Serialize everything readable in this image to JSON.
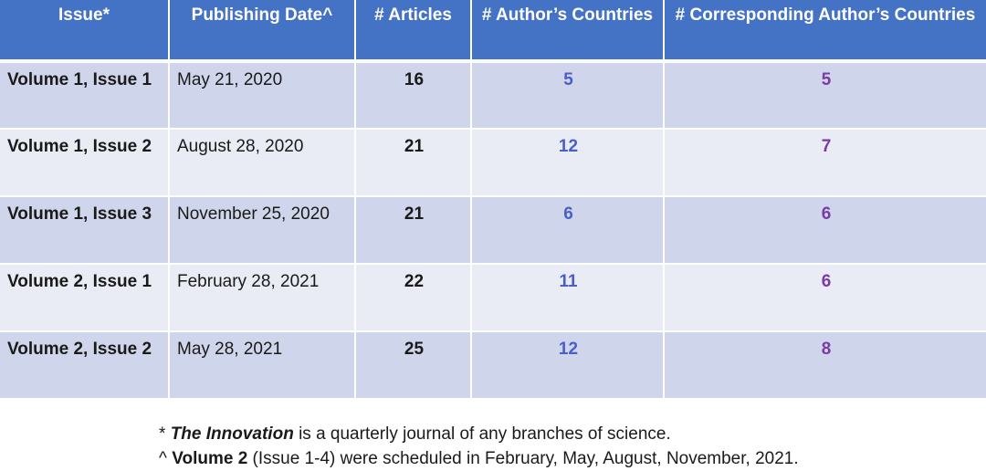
{
  "table": {
    "headers": [
      "Issue*",
      "Publishing Date^",
      "# Articles",
      "# Author’s Countries",
      "# Corresponding Author’s Countries"
    ],
    "rows": [
      {
        "issue": "Volume 1, Issue 1",
        "date": "May 21, 2020",
        "articles": "16",
        "authors": "5",
        "corr": "5"
      },
      {
        "issue": "Volume 1, Issue 2",
        "date": "August 28, 2020",
        "articles": "21",
        "authors": "12",
        "corr": "7"
      },
      {
        "issue": "Volume 1, Issue 3",
        "date": "November 25, 2020",
        "articles": "21",
        "authors": "6",
        "corr": "6"
      },
      {
        "issue": "Volume 2, Issue 1",
        "date": "February 28, 2021",
        "articles": "22",
        "authors": "11",
        "corr": "6"
      },
      {
        "issue": "Volume 2, Issue 2",
        "date": "May 28, 2021",
        "articles": "25",
        "authors": "12",
        "corr": "8"
      }
    ]
  },
  "notes": {
    "note1_mark": "* ",
    "note1_title": "The Innovation",
    "note1_rest": " is a quarterly journal of any branches of science.",
    "note2_mark": "^ ",
    "note2_bold": "Volume 2",
    "note2_rest": " (Issue 1-4) were scheduled in February, May, August, November, 2021."
  },
  "colors": {
    "header_bg": "#4472c4",
    "row_dark": "#cfd5ea",
    "row_light": "#e9ebf5",
    "author_countries": "#4a5ec7",
    "corresponding_countries": "#7b3aa8"
  }
}
